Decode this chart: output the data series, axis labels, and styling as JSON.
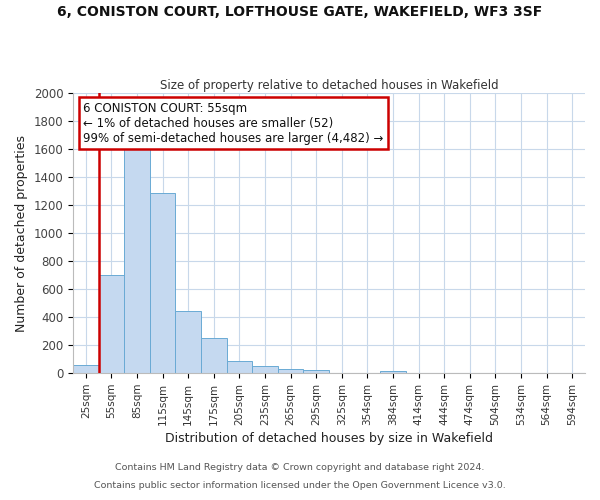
{
  "title": "6, CONISTON COURT, LOFTHOUSE GATE, WAKEFIELD, WF3 3SF",
  "subtitle": "Size of property relative to detached houses in Wakefield",
  "xlabel": "Distribution of detached houses by size in Wakefield",
  "ylabel": "Number of detached properties",
  "bar_labels": [
    "25sqm",
    "55sqm",
    "85sqm",
    "115sqm",
    "145sqm",
    "175sqm",
    "205sqm",
    "235sqm",
    "265sqm",
    "295sqm",
    "325sqm",
    "354sqm",
    "384sqm",
    "414sqm",
    "444sqm",
    "474sqm",
    "504sqm",
    "534sqm",
    "564sqm",
    "594sqm"
  ],
  "bar_values": [
    60,
    700,
    1635,
    1285,
    445,
    255,
    88,
    50,
    28,
    20,
    0,
    0,
    15,
    0,
    0,
    0,
    0,
    0,
    0,
    0
  ],
  "bar_color": "#c5d9f0",
  "bar_edge_color": "#6aaad4",
  "highlight_color": "#cc0000",
  "ylim": [
    0,
    2000
  ],
  "yticks": [
    0,
    200,
    400,
    600,
    800,
    1000,
    1200,
    1400,
    1600,
    1800,
    2000
  ],
  "annotation_title": "6 CONISTON COURT: 55sqm",
  "annotation_line1": "← 1% of detached houses are smaller (52)",
  "annotation_line2": "99% of semi-detached houses are larger (4,482) →",
  "annotation_color": "#cc0000",
  "footer1": "Contains HM Land Registry data © Crown copyright and database right 2024.",
  "footer2": "Contains public sector information licensed under the Open Government Licence v3.0.",
  "bg_color": "#ffffff",
  "grid_color": "#c8d8ea"
}
